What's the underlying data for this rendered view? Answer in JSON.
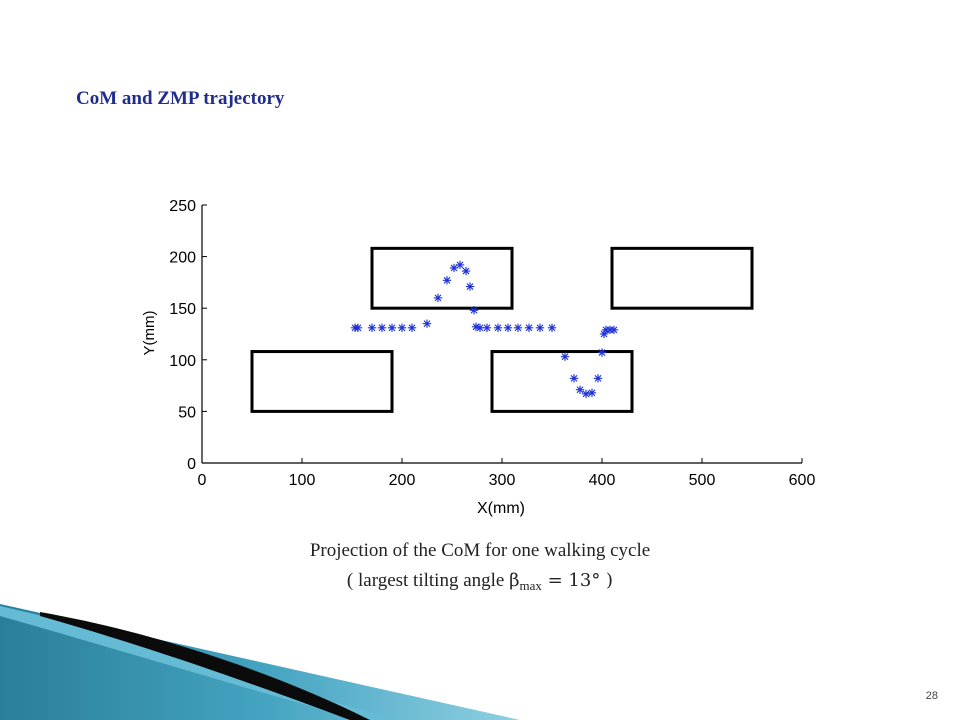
{
  "slide": {
    "title": "CoM and ZMP trajectory",
    "caption_line1": "Projection of the CoM for one walking cycle",
    "caption_line2_prefix": "( largest tilting angle ",
    "caption_beta": "β",
    "caption_sub": "max",
    "caption_line2_suffix": " = 13° )",
    "page_number": "28"
  },
  "chart_data": {
    "type": "scatter",
    "xlabel": "X(mm)",
    "ylabel": "Y(mm)",
    "xlim": [
      0,
      600
    ],
    "ylim": [
      0,
      250
    ],
    "xticks": [
      0,
      100,
      200,
      300,
      400,
      500,
      600
    ],
    "yticks": [
      0,
      50,
      100,
      150,
      200,
      250
    ],
    "grid": false,
    "marker": "*",
    "marker_color": "#1a2fd6",
    "footprints": [
      {
        "x0": 50,
        "y0": 50,
        "x1": 190,
        "y1": 108
      },
      {
        "x0": 170,
        "y0": 150,
        "x1": 310,
        "y1": 208
      },
      {
        "x0": 290,
        "y0": 50,
        "x1": 430,
        "y1": 108
      },
      {
        "x0": 410,
        "y0": 150,
        "x1": 550,
        "y1": 208
      }
    ],
    "points": [
      [
        153,
        131
      ],
      [
        156,
        131
      ],
      [
        170,
        131
      ],
      [
        180,
        131
      ],
      [
        190,
        131
      ],
      [
        200,
        131
      ],
      [
        210,
        131
      ],
      [
        225,
        135
      ],
      [
        236,
        160
      ],
      [
        245,
        177
      ],
      [
        252,
        189
      ],
      [
        258,
        192
      ],
      [
        264,
        186
      ],
      [
        268,
        171
      ],
      [
        272,
        148
      ],
      [
        274,
        132
      ],
      [
        278,
        131
      ],
      [
        285,
        131
      ],
      [
        296,
        131
      ],
      [
        306,
        131
      ],
      [
        316,
        131
      ],
      [
        327,
        131
      ],
      [
        338,
        131
      ],
      [
        350,
        131
      ],
      [
        363,
        103
      ],
      [
        372,
        82
      ],
      [
        378,
        71
      ],
      [
        384,
        67
      ],
      [
        390,
        68
      ],
      [
        396,
        82
      ],
      [
        400,
        107
      ],
      [
        402,
        125
      ],
      [
        404,
        129
      ],
      [
        408,
        129
      ],
      [
        412,
        129
      ]
    ]
  }
}
